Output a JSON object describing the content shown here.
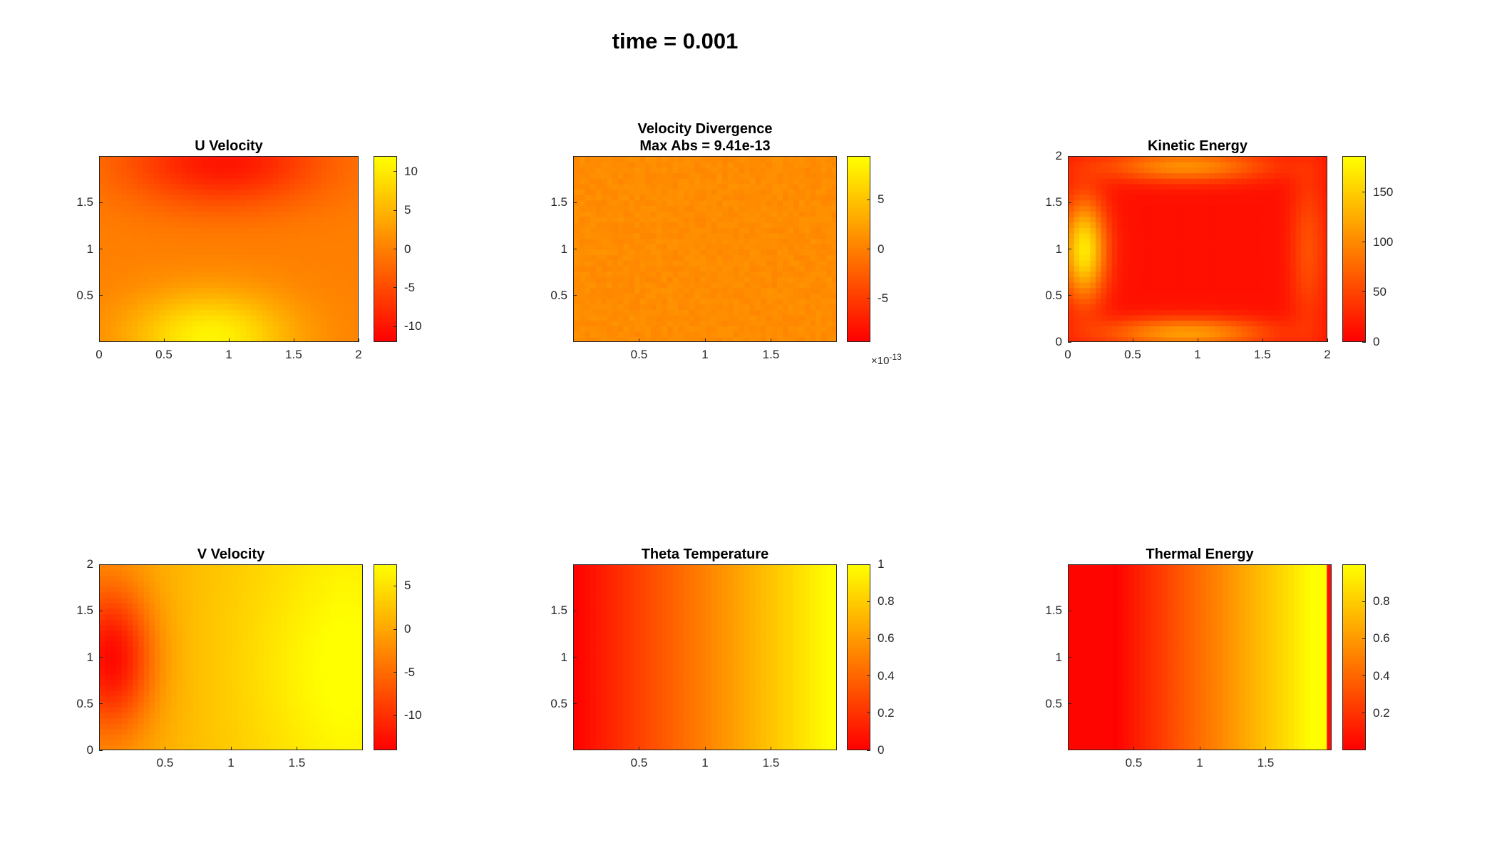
{
  "figure": {
    "title": "time = 0.001"
  },
  "colors": {
    "colormap_low": "#ff0000",
    "colormap_high": "#ffff00",
    "axis": "#262626"
  },
  "chart_data": [
    {
      "type": "heatmap",
      "title": [
        "U Velocity"
      ],
      "x_range": [
        0,
        2
      ],
      "y_range": [
        0,
        2
      ],
      "xticks": [
        0,
        0.5,
        1,
        1.5,
        2
      ],
      "xtick_labels": [
        "0",
        "0.5",
        "1",
        "1.5",
        "2"
      ],
      "yticks": [
        0.5,
        1,
        1.5
      ],
      "ytick_labels": [
        "0.5",
        "1",
        "1.5"
      ],
      "colorbar": {
        "range": [
          -12,
          12
        ],
        "ticks": [
          -10,
          -5,
          0,
          5,
          10
        ],
        "labels": [
          "-10",
          "-5",
          "0",
          "5",
          "10"
        ],
        "exponent": ""
      },
      "field": "u_velocity"
    },
    {
      "type": "heatmap",
      "title": [
        "Velocity Divergence",
        "Max Abs = 9.41e-13"
      ],
      "x_range": [
        0,
        2
      ],
      "y_range": [
        0,
        2
      ],
      "xticks": [
        0.5,
        1,
        1.5
      ],
      "xtick_labels": [
        "0.5",
        "1",
        "1.5"
      ],
      "yticks": [
        0.5,
        1,
        1.5
      ],
      "ytick_labels": [
        "0.5",
        "1",
        "1.5"
      ],
      "colorbar": {
        "range": [
          -9.4,
          9.4
        ],
        "ticks": [
          -5,
          0,
          5
        ],
        "labels": [
          "-5",
          "0",
          "5"
        ],
        "exponent": "-13"
      },
      "field": "divergence"
    },
    {
      "type": "heatmap",
      "title": [
        "Kinetic Energy"
      ],
      "x_range": [
        0,
        2
      ],
      "y_range": [
        0,
        2
      ],
      "xticks": [
        0,
        0.5,
        1,
        1.5,
        2
      ],
      "xtick_labels": [
        "0",
        "0.5",
        "1",
        "1.5",
        "2"
      ],
      "yticks": [
        0,
        0.5,
        1,
        1.5,
        2
      ],
      "ytick_labels": [
        "0",
        "0.5",
        "1",
        "1.5",
        "2"
      ],
      "colorbar": {
        "range": [
          0,
          186
        ],
        "ticks": [
          0,
          50,
          100,
          150
        ],
        "labels": [
          "0",
          "50",
          "100",
          "150"
        ],
        "exponent": ""
      },
      "field": "kinetic_energy"
    },
    {
      "type": "heatmap",
      "title": [
        "V Velocity"
      ],
      "x_range": [
        0,
        2
      ],
      "y_range": [
        0,
        2
      ],
      "xticks": [
        0.5,
        1,
        1.5
      ],
      "xtick_labels": [
        "0.5",
        "1",
        "1.5"
      ],
      "yticks": [
        0,
        0.5,
        1,
        1.5,
        2
      ],
      "ytick_labels": [
        "0",
        "0.5",
        "1",
        "1.5",
        "2"
      ],
      "colorbar": {
        "range": [
          -14,
          7.5
        ],
        "ticks": [
          -10,
          -5,
          0,
          5
        ],
        "labels": [
          "-10",
          "-5",
          "0",
          "5"
        ],
        "exponent": ""
      },
      "field": "v_velocity"
    },
    {
      "type": "heatmap",
      "title": [
        "Theta Temperature"
      ],
      "x_range": [
        0,
        2
      ],
      "y_range": [
        0,
        2
      ],
      "xticks": [
        0.5,
        1,
        1.5
      ],
      "xtick_labels": [
        "0.5",
        "1",
        "1.5"
      ],
      "yticks": [
        0.5,
        1,
        1.5
      ],
      "ytick_labels": [
        "0.5",
        "1",
        "1.5"
      ],
      "colorbar": {
        "range": [
          0,
          1
        ],
        "ticks": [
          0,
          0.2,
          0.4,
          0.6,
          0.8,
          1
        ],
        "labels": [
          "0",
          "0.2",
          "0.4",
          "0.6",
          "0.8",
          "1"
        ],
        "exponent": ""
      },
      "field": "theta"
    },
    {
      "type": "heatmap",
      "title": [
        "Thermal Energy"
      ],
      "x_range": [
        0,
        2
      ],
      "y_range": [
        0,
        2
      ],
      "xticks": [
        0.5,
        1,
        1.5
      ],
      "xtick_labels": [
        "0.5",
        "1",
        "1.5"
      ],
      "yticks": [
        0.5,
        1,
        1.5
      ],
      "ytick_labels": [
        "0.5",
        "1",
        "1.5"
      ],
      "colorbar": {
        "range": [
          0,
          1
        ],
        "ticks": [
          0.2,
          0.4,
          0.6,
          0.8
        ],
        "labels": [
          "0.2",
          "0.4",
          "0.6",
          "0.8"
        ],
        "exponent": ""
      },
      "field": "thermal_energy"
    }
  ]
}
